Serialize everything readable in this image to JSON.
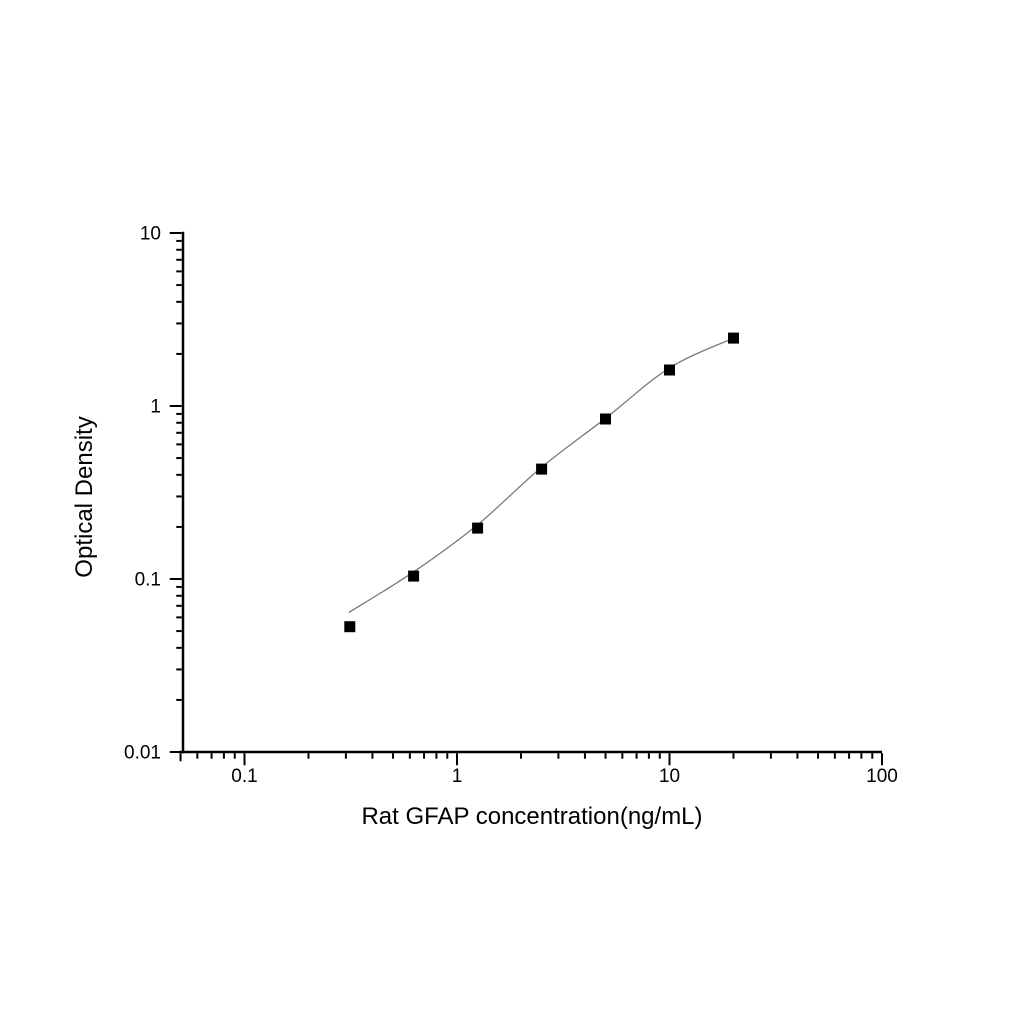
{
  "figure": {
    "background": "#ffffff",
    "description": "ELISA standard curve, log-log scatter plot with fitted curve"
  },
  "chart_data": {
    "type": "scatter",
    "title": "",
    "xlabel": "Rat GFAP concentration(ng/mL)",
    "ylabel": "Optical Density",
    "xscale": "log",
    "yscale": "log",
    "xlim": [
      0.05,
      100
    ],
    "ylim": [
      0.01,
      10
    ],
    "grid": false,
    "legend": "none",
    "x_major_ticks": {
      "values": [
        0.1,
        1,
        10,
        100
      ],
      "labels": [
        "0.1",
        "1",
        "10",
        "100"
      ]
    },
    "y_major_ticks": {
      "values": [
        10,
        1,
        0.1,
        0.01
      ],
      "labels": [
        "10",
        "1",
        "0.1",
        "0.01"
      ]
    },
    "marker": "filled-square",
    "marker_color": "#000000",
    "curve_color": "#7a7a7a",
    "axis_color": "#000000",
    "points": [
      {
        "x": 0.313,
        "od": 0.053
      },
      {
        "x": 0.625,
        "od": 0.104
      },
      {
        "x": 1.25,
        "od": 0.197
      },
      {
        "x": 2.5,
        "od": 0.432
      },
      {
        "x": 5,
        "od": 0.841
      },
      {
        "x": 10,
        "od": 1.615
      },
      {
        "x": 20,
        "od": 2.47
      }
    ],
    "fit_curve_points": [
      {
        "x": 0.31,
        "od": 0.064
      },
      {
        "x": 0.625,
        "od": 0.11
      },
      {
        "x": 1.25,
        "od": 0.206
      },
      {
        "x": 2.5,
        "od": 0.442
      },
      {
        "x": 5,
        "od": 0.849
      },
      {
        "x": 10,
        "od": 1.66
      },
      {
        "x": 20,
        "od": 2.47
      }
    ]
  }
}
